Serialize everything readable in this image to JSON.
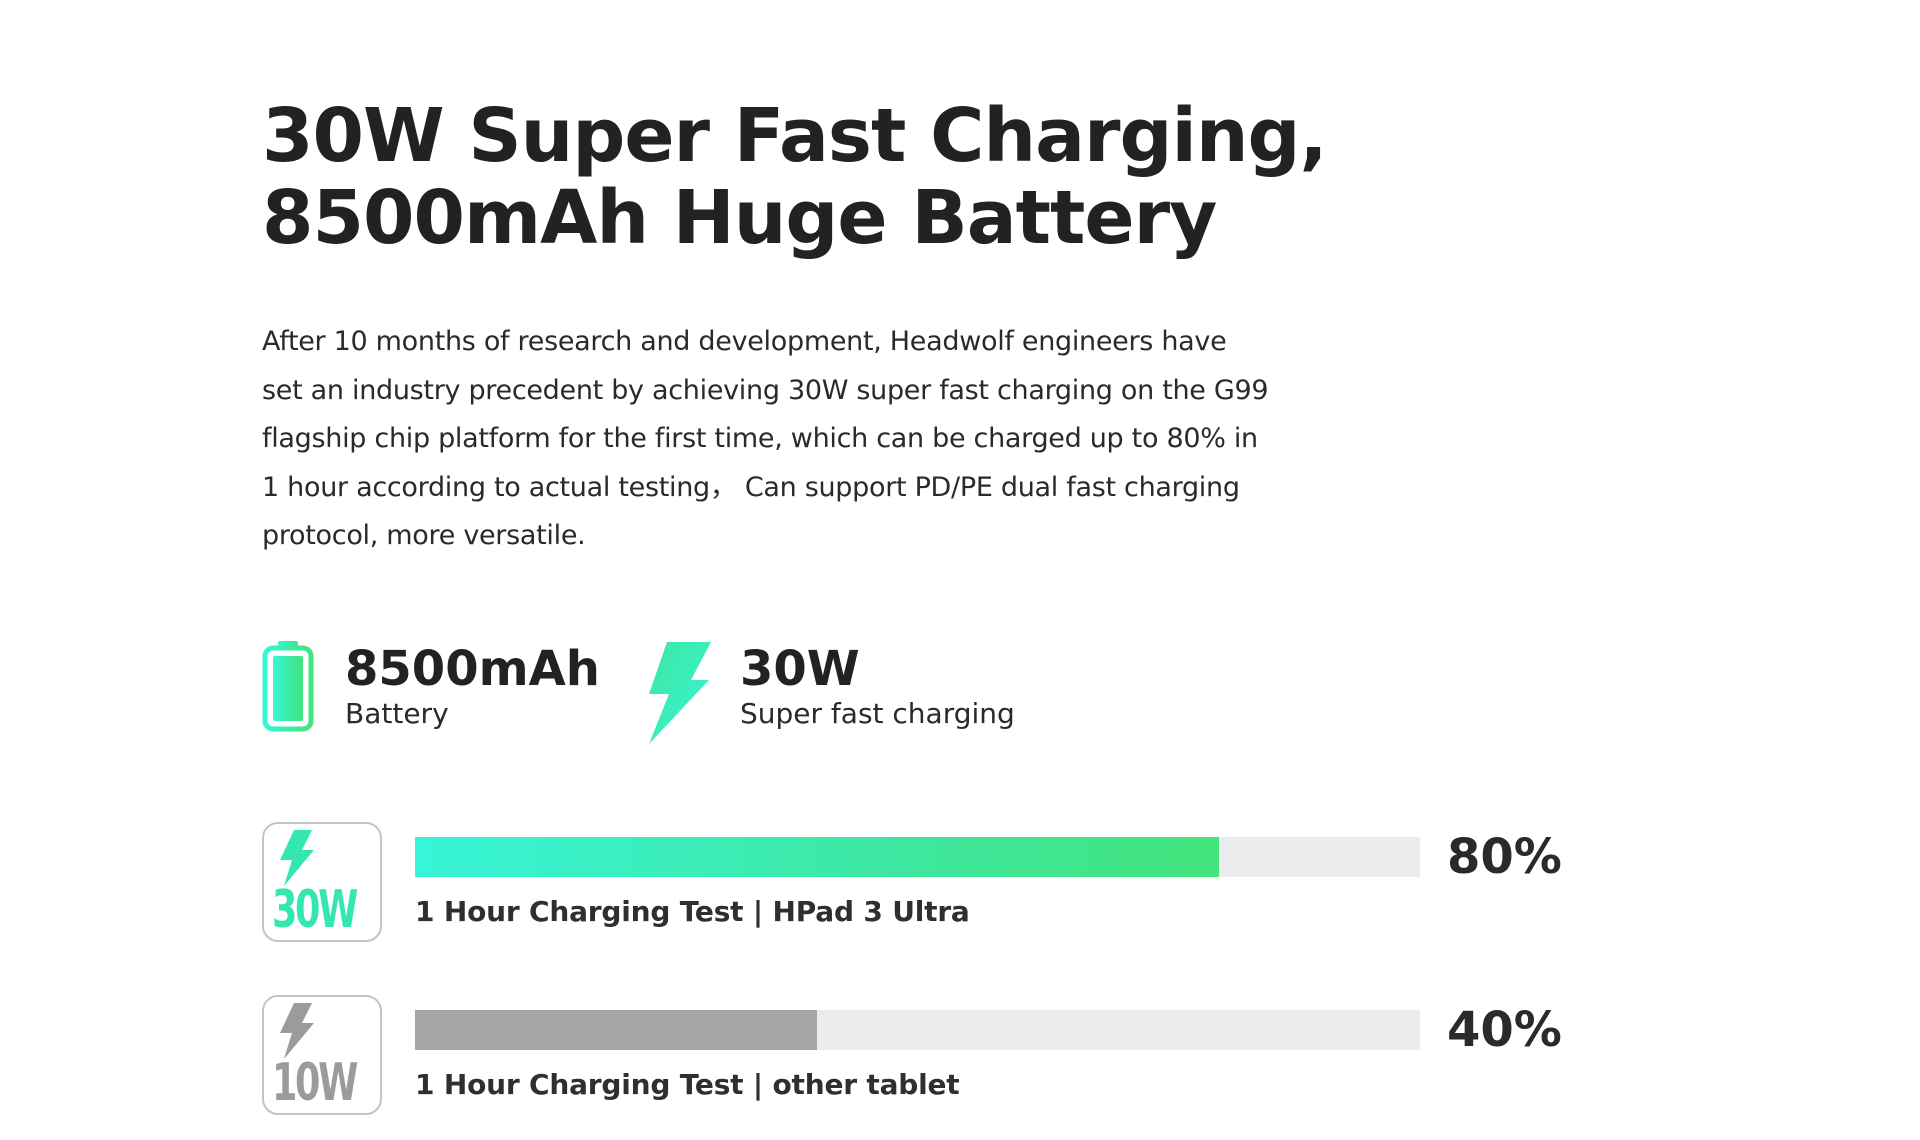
{
  "headline": {
    "line1": "30W Super Fast Charging,",
    "line2": "8500mAh Huge Battery"
  },
  "description": "After 10 months of research and development, Headwolf engineers have set an industry precedent by achieving 30W super fast charging on the G99 flagship chip platform for the first time, which can be charged up to 80% in 1 hour according to actual testing， Can support PD/PE dual fast charging protocol, more versatile.",
  "specs": {
    "battery": {
      "value": "8500mAh",
      "label": "Battery",
      "icon": "battery-icon"
    },
    "power": {
      "value": "30W",
      "label": "Super fast charging",
      "icon": "lightning-bolt-icon"
    }
  },
  "tests": [
    {
      "badge": "30W",
      "label": "1 Hour Charging Test | HPad 3 Ultra",
      "percent_text": "80%",
      "progress": 0.8,
      "color_start": "#37f5d8",
      "color_end": "#42e47c"
    },
    {
      "badge": "10W",
      "label": "1 Hour Charging Test | other tablet",
      "percent_text": "40%",
      "progress": 0.4,
      "color_start": "#a5a5a5",
      "color_end": "#a5a5a5"
    }
  ],
  "colors": {
    "accent_green": "#3ee7a0",
    "accent_cyan": "#37f5d8",
    "inactive_gray": "#a5a5a5",
    "track_gray": "#ebeced",
    "text_dark": "#222222"
  }
}
